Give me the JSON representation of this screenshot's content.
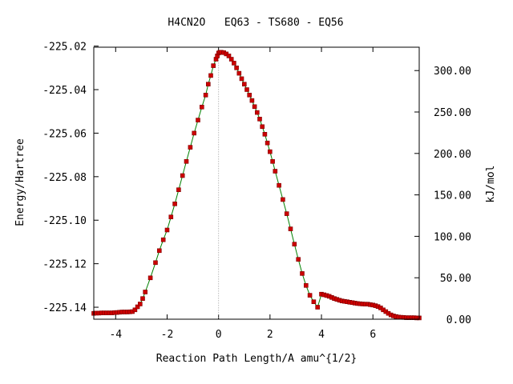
{
  "chart_data": {
    "type": "line",
    "title": "H4CN2O   EQ63 - TS680 - EQ56",
    "xlabel": "Reaction Path Length/A amu^{1/2}",
    "ylabel": "Energy/Hartree",
    "y2label": "kJ/mol",
    "xlim": [
      -4.85,
      7.8
    ],
    "ylim": [
      -225.1455,
      -225.0205
    ],
    "y2lim": [
      0,
      328.2
    ],
    "x_ticks": [
      -4,
      -2,
      0,
      2,
      4,
      6
    ],
    "x_tick_labels": [
      "-4",
      "-2",
      "0",
      "2",
      "4",
      "6"
    ],
    "y_ticks": [
      -225.14,
      -225.12,
      -225.1,
      -225.08,
      -225.06,
      -225.04,
      -225.02
    ],
    "y_tick_labels": [
      "-225.14",
      "-225.12",
      "-225.10",
      "-225.08",
      "-225.06",
      "-225.04",
      "-225.02"
    ],
    "y2_ticks": [
      0,
      50,
      100,
      150,
      200,
      250,
      300
    ],
    "y2_tick_labels": [
      "0.00",
      "50.00",
      "100.00",
      "150.00",
      "200.00",
      "250.00",
      "300.00"
    ],
    "ts_marker_x": 0,
    "colors": {
      "line": "#008000",
      "marker_fill": "#cc0000",
      "marker_edge": "#800000",
      "ts_line": "#999999"
    },
    "series": [
      {
        "x": [
          -4.85,
          -4.75,
          -4.65,
          -4.55,
          -4.45,
          -4.35,
          -4.25,
          -4.15,
          -4.05,
          -3.95,
          -3.85,
          -3.75,
          -3.65,
          -3.55,
          -3.45,
          -3.35,
          -3.25,
          -3.15,
          -3.05,
          -2.95,
          -2.85,
          -2.65,
          -2.45,
          -2.3,
          -2.15,
          -2.0,
          -1.85,
          -1.7,
          -1.55,
          -1.4,
          -1.25,
          -1.1,
          -0.95,
          -0.8,
          -0.65,
          -0.5,
          -0.4,
          -0.3,
          -0.2,
          -0.1,
          -0.05,
          0.0,
          0.05,
          0.1,
          0.2,
          0.3,
          0.4,
          0.5,
          0.6,
          0.7,
          0.8,
          0.9,
          1.0,
          1.1,
          1.2,
          1.3,
          1.4,
          1.5,
          1.6,
          1.7,
          1.8,
          1.9,
          2.0,
          2.1,
          2.2,
          2.35,
          2.5,
          2.65,
          2.8,
          2.95,
          3.1,
          3.25,
          3.4,
          3.55,
          3.7,
          3.85,
          4.0,
          4.1,
          4.2,
          4.3,
          4.4,
          4.5,
          4.6,
          4.7,
          4.8,
          4.9,
          5.0,
          5.1,
          5.2,
          5.3,
          5.4,
          5.5,
          5.6,
          5.7,
          5.8,
          5.9,
          6.0,
          6.1,
          6.2,
          6.3,
          6.4,
          6.5,
          6.6,
          6.7,
          6.8,
          6.9,
          7.0,
          7.1,
          7.2,
          7.3,
          7.4,
          7.5,
          7.6,
          7.7,
          7.8
        ],
        "y": [
          -225.1428,
          -225.1427,
          -225.1427,
          -225.1426,
          -225.1426,
          -225.1426,
          -225.1426,
          -225.1426,
          -225.1425,
          -225.1424,
          -225.1423,
          -225.1422,
          -225.1422,
          -225.1422,
          -225.1421,
          -225.142,
          -225.1412,
          -225.1398,
          -225.1385,
          -225.136,
          -225.133,
          -225.1265,
          -225.1195,
          -225.114,
          -225.109,
          -225.1045,
          -225.0985,
          -225.0925,
          -225.086,
          -225.0795,
          -225.073,
          -225.0665,
          -225.06,
          -225.054,
          -225.048,
          -225.0425,
          -225.0375,
          -225.0335,
          -225.029,
          -225.026,
          -225.0245,
          -225.0232,
          -225.0228,
          -225.0228,
          -225.023,
          -225.0236,
          -225.0245,
          -225.026,
          -225.0278,
          -225.03,
          -225.0325,
          -225.035,
          -225.0375,
          -225.04,
          -225.0425,
          -225.045,
          -225.0478,
          -225.0505,
          -225.0535,
          -225.057,
          -225.0605,
          -225.0645,
          -225.0685,
          -225.073,
          -225.0775,
          -225.084,
          -225.0905,
          -225.097,
          -225.104,
          -225.111,
          -225.118,
          -225.1245,
          -225.13,
          -225.1345,
          -225.1375,
          -225.14,
          -225.134,
          -225.1343,
          -225.1346,
          -225.135,
          -225.1355,
          -225.136,
          -225.1364,
          -225.1368,
          -225.1371,
          -225.1373,
          -225.1375,
          -225.1377,
          -225.1379,
          -225.1381,
          -225.1383,
          -225.1384,
          -225.1385,
          -225.1386,
          -225.1386,
          -225.1388,
          -225.139,
          -225.1393,
          -225.1397,
          -225.1403,
          -225.1412,
          -225.142,
          -225.1428,
          -225.1435,
          -225.144,
          -225.1443,
          -225.1445,
          -225.1446,
          -225.1447,
          -225.1448,
          -225.1448,
          -225.1448,
          -225.1448,
          -225.1449,
          -225.1449
        ]
      }
    ]
  }
}
